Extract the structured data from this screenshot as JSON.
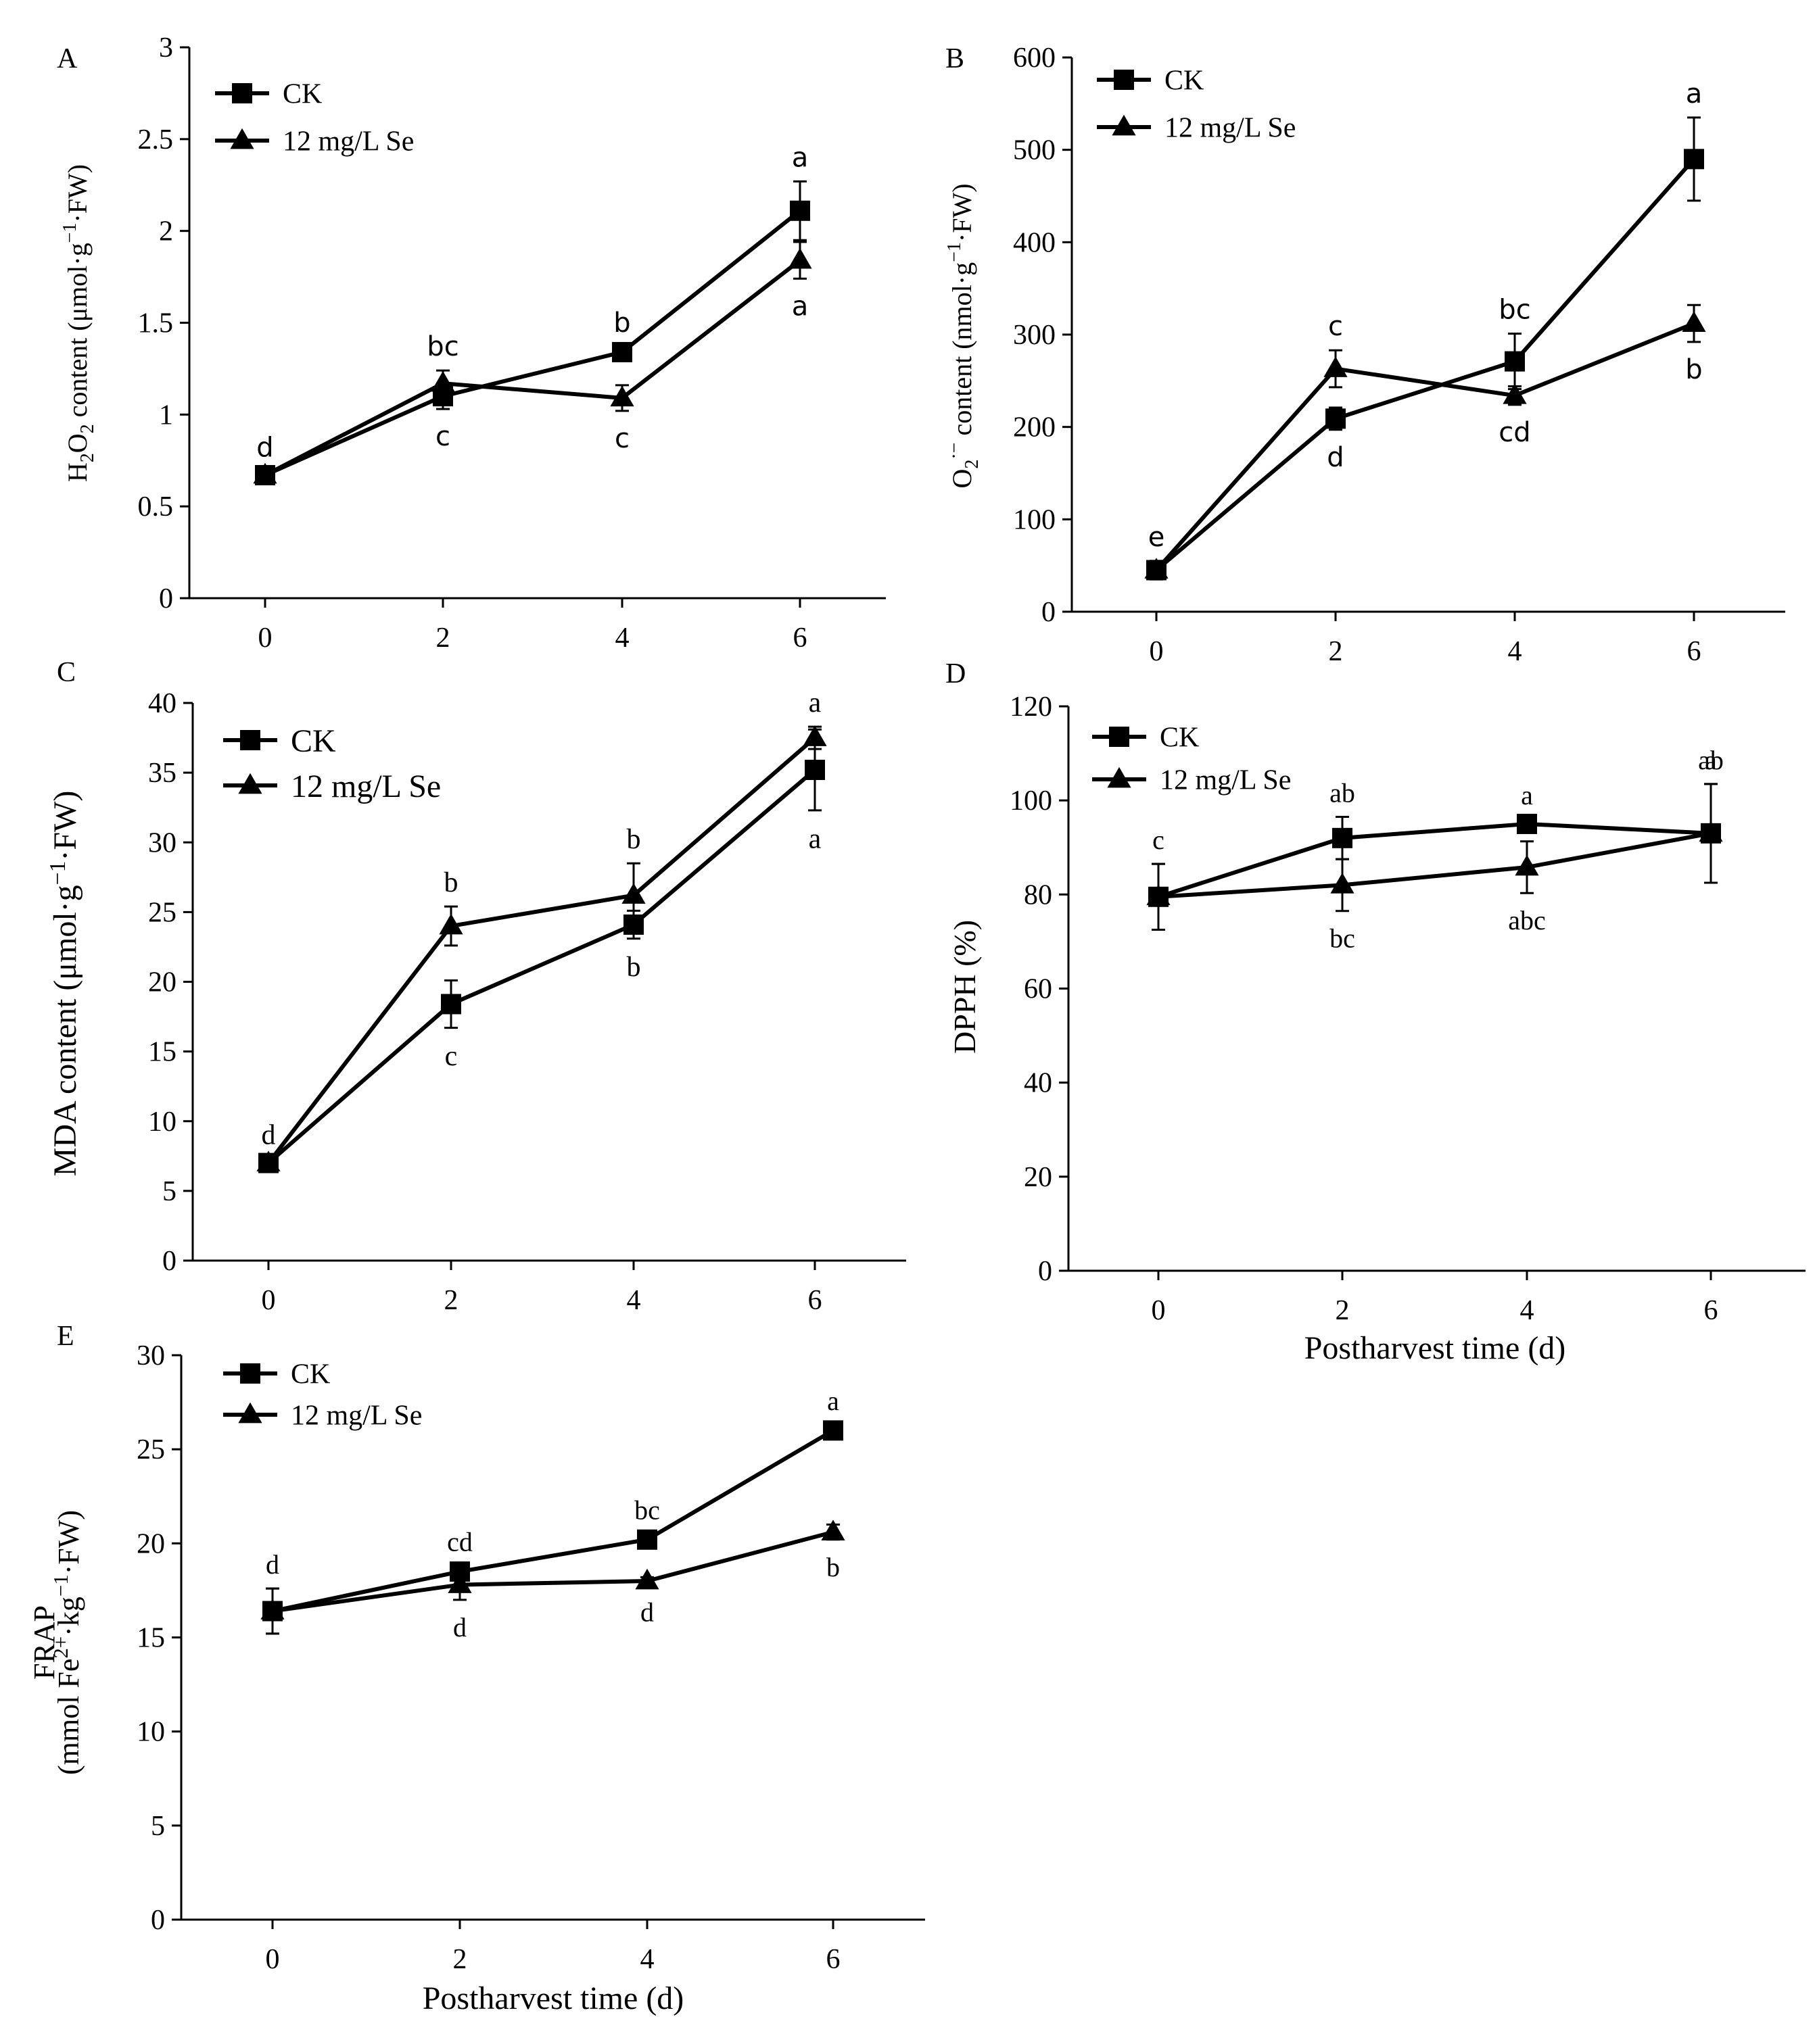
{
  "chart_data": [
    {
      "panel": "A",
      "type": "line",
      "x": [
        0,
        2,
        4,
        6
      ],
      "xticks": [
        "0",
        "2",
        "4",
        "6"
      ],
      "xlabel": "",
      "ylabel": "H2O2 content (μmol·g−1·FW)",
      "ylabel_parts": {
        "pre": "H",
        "sub1": "2",
        "mid": "O",
        "sub2": "2",
        "post": " content (μmol·g",
        "sup": "−1",
        "tail": "·FW)"
      },
      "ylim": [
        0,
        3
      ],
      "yticks": [
        "0",
        "0.5",
        "1",
        "1.5",
        "2",
        "2.5",
        "3"
      ],
      "legend": [
        "CK",
        "12 mg/L Se"
      ],
      "series": [
        {
          "name": "CK",
          "marker": "square",
          "values": [
            0.67,
            1.1,
            1.34,
            2.11
          ],
          "errors": [
            0.02,
            0.07,
            0.03,
            0.16
          ],
          "letters": [
            "d",
            "c",
            "b",
            "a"
          ]
        },
        {
          "name": "12 mg/L Se",
          "marker": "triangle",
          "values": [
            0.67,
            1.17,
            1.09,
            1.84
          ],
          "errors": [
            0.02,
            0.07,
            0.07,
            0.1
          ],
          "letters": [
            "",
            "bc",
            "c",
            "a"
          ]
        }
      ]
    },
    {
      "panel": "B",
      "type": "line",
      "x": [
        0,
        2,
        4,
        6
      ],
      "xticks": [
        "0",
        "2",
        "4",
        "6"
      ],
      "xlabel": "",
      "ylabel": "O2·− content (nmol·g−1·FW)",
      "ylabel_parts": {
        "pre": "O",
        "sub1": "2",
        "sup0": "·−",
        "post": " content (nmol·g",
        "sup": "−1",
        "tail": "·FW)"
      },
      "ylim": [
        0,
        600
      ],
      "yticks": [
        "0",
        "100",
        "200",
        "300",
        "400",
        "500",
        "600"
      ],
      "legend": [
        "CK",
        "12 mg/L Se"
      ],
      "series": [
        {
          "name": "CK",
          "marker": "square",
          "values": [
            45,
            209,
            271,
            490
          ],
          "errors": [
            10,
            12,
            30,
            45
          ],
          "letters": [
            "e",
            "d",
            "bc",
            "a"
          ]
        },
        {
          "name": "12 mg/L Se",
          "marker": "triangle",
          "values": [
            45,
            263,
            234,
            312
          ],
          "errors": [
            10,
            20,
            10,
            20
          ],
          "letters": [
            "",
            "c",
            "cd",
            "b"
          ]
        }
      ]
    },
    {
      "panel": "C",
      "type": "line",
      "x": [
        0,
        2,
        4,
        6
      ],
      "xticks": [
        "0",
        "2",
        "4",
        "6"
      ],
      "xlabel": "",
      "ylabel": "MDA content (μmol·g−1·FW)",
      "ylabel_parts": {
        "pre": "MDA content (μmol·g",
        "sup": "−1",
        "tail": "·FW)"
      },
      "ylim": [
        0,
        40
      ],
      "yticks": [
        "0",
        "5",
        "10",
        "15",
        "20",
        "25",
        "30",
        "35",
        "40"
      ],
      "legend": [
        "CK",
        "12 mg/L Se"
      ],
      "series": [
        {
          "name": "CK",
          "marker": "square",
          "values": [
            7.0,
            18.4,
            24.1,
            35.2
          ],
          "errors": [
            0.3,
            1.7,
            1.0,
            2.9
          ],
          "letters": [
            "d",
            "c",
            "b",
            "a"
          ]
        },
        {
          "name": "12 mg/L Se",
          "marker": "triangle",
          "values": [
            7.0,
            24.0,
            26.2,
            37.5
          ],
          "errors": [
            0.3,
            1.4,
            2.3,
            0.8
          ],
          "letters": [
            "",
            "b",
            "b",
            "a"
          ]
        }
      ]
    },
    {
      "panel": "D",
      "type": "line",
      "x": [
        0,
        2,
        4,
        6
      ],
      "xticks": [
        "0",
        "2",
        "4",
        "6"
      ],
      "xlabel": "Postharvest time (d)",
      "ylabel": "DPPH (%)",
      "ylabel_parts": {
        "pre": "DPPH (%)"
      },
      "ylim": [
        0,
        120
      ],
      "yticks": [
        "0",
        "20",
        "40",
        "60",
        "80",
        "100",
        "120"
      ],
      "legend": [
        "CK",
        "12 mg/L Se"
      ],
      "series": [
        {
          "name": "CK",
          "marker": "square",
          "values": [
            79.5,
            92,
            95,
            93
          ],
          "errors": [
            7,
            4.5,
            1,
            10.5
          ],
          "letters": [
            "c",
            "ab",
            "a",
            "a"
          ]
        },
        {
          "name": "12 mg/L Se",
          "marker": "triangle",
          "values": [
            79.5,
            82,
            85.8,
            93
          ],
          "errors": [
            7,
            5.5,
            5.5,
            10.5
          ],
          "letters": [
            "",
            "bc",
            "abc",
            "ab"
          ]
        }
      ]
    },
    {
      "panel": "E",
      "type": "line",
      "x": [
        0,
        2,
        4,
        6
      ],
      "xticks": [
        "0",
        "2",
        "4",
        "6"
      ],
      "xlabel": "Postharvest time (d)",
      "ylabel": "FRAP (mmol Fe2+·kg−1·FW)",
      "ylabel_line1": "FRAP",
      "ylabel_parts": {
        "pre": "(mmol Fe",
        "sup1": "2+",
        "mid": "·kg",
        "sup": "−1",
        "tail": "·FW)"
      },
      "ylim": [
        0,
        30
      ],
      "yticks": [
        "0",
        "5",
        "10",
        "15",
        "20",
        "25",
        "30"
      ],
      "legend": [
        "CK",
        "12 mg/L Se"
      ],
      "series": [
        {
          "name": "CK",
          "marker": "square",
          "values": [
            16.4,
            18.5,
            20.2,
            26.0
          ],
          "errors": [
            1.2,
            0.3,
            0.3,
            0.3
          ],
          "letters": [
            "d",
            "cd",
            "bc",
            "a"
          ]
        },
        {
          "name": "12 mg/L Se",
          "marker": "triangle",
          "values": [
            16.4,
            17.8,
            18.0,
            20.6
          ],
          "errors": [
            1.2,
            0.8,
            0.2,
            0.4
          ],
          "letters": [
            "",
            "d",
            "d",
            "b"
          ]
        }
      ]
    }
  ]
}
